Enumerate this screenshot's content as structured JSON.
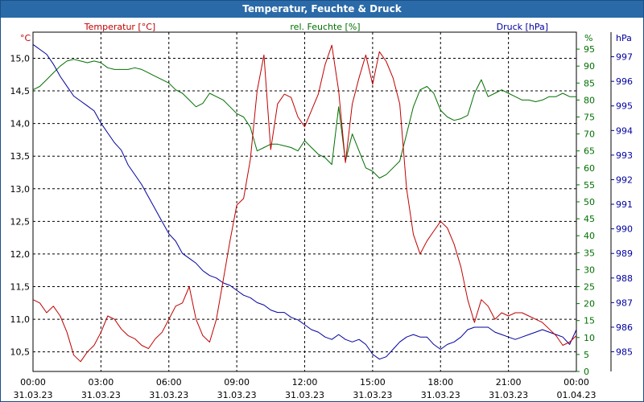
{
  "window": {
    "title": "Temperatur, Feuchte & Druck"
  },
  "colors": {
    "temperature": "#c00000",
    "humidity": "#007000",
    "pressure": "#0000a0",
    "grid": "#000000",
    "text": "#000000"
  },
  "chart_data": {
    "type": "line",
    "title": "Temperatur, Feuchte & Druck",
    "xlabel": "",
    "x_ticks": [
      {
        "hours": 0,
        "time": "00:00",
        "date": "31.03.23"
      },
      {
        "hours": 3,
        "time": "03:00",
        "date": "31.03.23"
      },
      {
        "hours": 6,
        "time": "06:00",
        "date": "31.03.23"
      },
      {
        "hours": 9,
        "time": "09:00",
        "date": "31.03.23"
      },
      {
        "hours": 12,
        "time": "12:00",
        "date": "31.03.23"
      },
      {
        "hours": 15,
        "time": "15:00",
        "date": "31.03.23"
      },
      {
        "hours": 18,
        "time": "18:00",
        "date": "31.03.23"
      },
      {
        "hours": 21,
        "time": "21:00",
        "date": "31.03.23"
      },
      {
        "hours": 24,
        "time": "00:00",
        "date": "01.04.23"
      }
    ],
    "xlim": [
      0,
      24
    ],
    "axes": {
      "temperature": {
        "unit": "°C",
        "label": "Temperatur [°C]",
        "ylim": [
          10.2,
          15.4
        ],
        "ticks": [
          10.5,
          11.0,
          11.5,
          12.0,
          12.5,
          13.0,
          13.5,
          14.0,
          14.5,
          15.0
        ],
        "tick_labels": [
          "10,5",
          "11,0",
          "11,5",
          "12,0",
          "12,5",
          "13,0",
          "13,5",
          "14,0",
          "14,5",
          "15,0"
        ]
      },
      "humidity": {
        "unit": "%",
        "label": "rel. Feuchte [%]",
        "ylim": [
          0,
          100
        ],
        "ticks": [
          0,
          5,
          10,
          15,
          20,
          25,
          30,
          35,
          40,
          45,
          50,
          55,
          60,
          65,
          70,
          75,
          80,
          85,
          90,
          95
        ],
        "tick_labels": [
          "0",
          "5",
          "10",
          "15",
          "20",
          "25",
          "30",
          "35",
          "40",
          "45",
          "50",
          "55",
          "60",
          "65",
          "70",
          "75",
          "80",
          "85",
          "90",
          "95"
        ]
      },
      "pressure": {
        "unit": "hPa",
        "label": "Druck [hPa]",
        "ylim": [
          984.2,
          998.0
        ],
        "ticks": [
          985,
          986,
          987,
          988,
          989,
          990,
          991,
          992,
          993,
          994,
          995,
          996,
          997
        ],
        "tick_labels": [
          "985",
          "986",
          "987",
          "988",
          "989",
          "990",
          "991",
          "992",
          "993",
          "994",
          "995",
          "996",
          "997"
        ]
      }
    },
    "series": [
      {
        "name": "Temperatur [°C]",
        "axis": "temperature",
        "x": [
          0,
          0.3,
          0.6,
          0.9,
          1.2,
          1.5,
          1.8,
          2.1,
          2.4,
          2.7,
          3.0,
          3.3,
          3.6,
          3.9,
          4.2,
          4.5,
          4.8,
          5.1,
          5.4,
          5.7,
          6.0,
          6.3,
          6.6,
          6.9,
          7.2,
          7.5,
          7.8,
          8.1,
          8.4,
          8.7,
          9.0,
          9.3,
          9.6,
          9.9,
          10.2,
          10.5,
          10.8,
          11.1,
          11.4,
          11.7,
          12.0,
          12.3,
          12.6,
          12.9,
          13.2,
          13.5,
          13.8,
          14.1,
          14.4,
          14.7,
          15.0,
          15.3,
          15.6,
          15.9,
          16.2,
          16.5,
          16.8,
          17.1,
          17.4,
          17.7,
          18.0,
          18.3,
          18.6,
          18.9,
          19.2,
          19.5,
          19.8,
          20.1,
          20.4,
          20.7,
          21.0,
          21.3,
          21.6,
          21.9,
          22.2,
          22.5,
          22.8,
          23.1,
          23.4,
          23.7,
          24.0
        ],
        "values": [
          11.3,
          11.25,
          11.1,
          11.2,
          11.05,
          10.8,
          10.45,
          10.35,
          10.5,
          10.6,
          10.8,
          11.05,
          11.0,
          10.85,
          10.75,
          10.7,
          10.6,
          10.55,
          10.7,
          10.8,
          11.0,
          11.2,
          11.25,
          11.5,
          11.0,
          10.75,
          10.65,
          11.0,
          11.6,
          12.2,
          12.75,
          12.85,
          13.45,
          14.5,
          15.05,
          13.6,
          14.3,
          14.45,
          14.4,
          14.1,
          13.95,
          14.2,
          14.45,
          14.9,
          15.2,
          14.5,
          13.4,
          14.3,
          14.7,
          15.05,
          14.6,
          15.1,
          14.95,
          14.7,
          14.3,
          13.0,
          12.3,
          12.0,
          12.2,
          12.35,
          12.5,
          12.4,
          12.15,
          11.8,
          11.3,
          10.95,
          11.3,
          11.2,
          11.0,
          11.1,
          11.05,
          11.1,
          11.1,
          11.05,
          11.0,
          10.95,
          10.85,
          10.75,
          10.6,
          10.65,
          10.75
        ]
      },
      {
        "name": "rel. Feuchte [%]",
        "axis": "humidity",
        "x": [
          0,
          0.3,
          0.6,
          0.9,
          1.2,
          1.5,
          1.8,
          2.1,
          2.4,
          2.7,
          3.0,
          3.3,
          3.6,
          3.9,
          4.2,
          4.5,
          4.8,
          5.1,
          5.4,
          5.7,
          6.0,
          6.3,
          6.6,
          6.9,
          7.2,
          7.5,
          7.8,
          8.1,
          8.4,
          8.7,
          9.0,
          9.3,
          9.6,
          9.9,
          10.2,
          10.5,
          10.8,
          11.1,
          11.4,
          11.7,
          12.0,
          12.3,
          12.6,
          12.9,
          13.2,
          13.5,
          13.8,
          14.1,
          14.4,
          14.7,
          15.0,
          15.3,
          15.6,
          15.9,
          16.2,
          16.5,
          16.8,
          17.1,
          17.4,
          17.7,
          18.0,
          18.3,
          18.6,
          18.9,
          19.2,
          19.5,
          19.8,
          20.1,
          20.4,
          20.7,
          21.0,
          21.3,
          21.6,
          21.9,
          22.2,
          22.5,
          22.8,
          23.1,
          23.4,
          23.7,
          24.0
        ],
        "values": [
          83,
          84,
          86,
          88,
          90,
          91.5,
          92,
          91.5,
          91,
          91.5,
          91,
          89.5,
          89,
          89,
          89,
          89.5,
          89,
          88,
          87,
          86,
          85,
          83,
          82,
          80,
          78,
          79,
          82,
          81,
          80,
          78,
          76,
          75,
          72,
          65,
          66,
          67,
          67,
          66.5,
          66,
          65,
          68,
          66,
          64,
          63,
          61,
          78,
          62,
          70,
          65,
          60,
          59,
          57,
          58,
          60,
          62,
          70,
          78,
          83,
          84,
          82,
          77,
          75,
          74,
          74.5,
          75.5,
          82,
          86,
          81,
          82,
          83,
          82,
          81,
          80,
          80,
          79.5,
          80,
          81,
          81,
          82,
          81,
          81
        ]
      },
      {
        "name": "Druck [hPa]",
        "axis": "pressure",
        "x": [
          0,
          0.3,
          0.6,
          0.9,
          1.2,
          1.5,
          1.8,
          2.1,
          2.4,
          2.7,
          3.0,
          3.3,
          3.6,
          3.9,
          4.2,
          4.5,
          4.8,
          5.1,
          5.4,
          5.7,
          6.0,
          6.3,
          6.6,
          6.9,
          7.2,
          7.5,
          7.8,
          8.1,
          8.4,
          8.7,
          9.0,
          9.3,
          9.6,
          9.9,
          10.2,
          10.5,
          10.8,
          11.1,
          11.4,
          11.7,
          12.0,
          12.3,
          12.6,
          12.9,
          13.2,
          13.5,
          13.8,
          14.1,
          14.4,
          14.7,
          15.0,
          15.3,
          15.6,
          15.9,
          16.2,
          16.5,
          16.8,
          17.1,
          17.4,
          17.7,
          18.0,
          18.3,
          18.6,
          18.9,
          19.2,
          19.5,
          19.8,
          20.1,
          20.4,
          20.7,
          21.0,
          21.3,
          21.6,
          21.9,
          22.2,
          22.5,
          22.8,
          23.1,
          23.4,
          23.7,
          24.0
        ],
        "values": [
          997.5,
          997.3,
          997.1,
          996.7,
          996.2,
          995.8,
          995.4,
          995.2,
          995.0,
          994.8,
          994.3,
          993.9,
          993.5,
          993.2,
          992.6,
          992.2,
          991.8,
          991.3,
          990.8,
          990.3,
          989.8,
          989.5,
          989.0,
          988.8,
          988.6,
          988.3,
          988.1,
          988.0,
          987.8,
          987.7,
          987.5,
          987.3,
          987.2,
          987.0,
          986.9,
          986.7,
          986.6,
          986.6,
          986.4,
          986.3,
          986.1,
          985.9,
          985.8,
          985.6,
          985.5,
          985.7,
          985.5,
          985.4,
          985.5,
          985.3,
          984.9,
          984.7,
          984.8,
          985.1,
          985.4,
          985.6,
          985.7,
          985.6,
          985.6,
          985.3,
          985.1,
          985.3,
          985.4,
          985.6,
          985.9,
          986.0,
          986.0,
          986.0,
          985.8,
          985.7,
          985.6,
          985.5,
          985.6,
          985.7,
          985.8,
          985.9,
          985.8,
          985.7,
          985.6,
          985.3,
          985.9
        ]
      }
    ]
  }
}
